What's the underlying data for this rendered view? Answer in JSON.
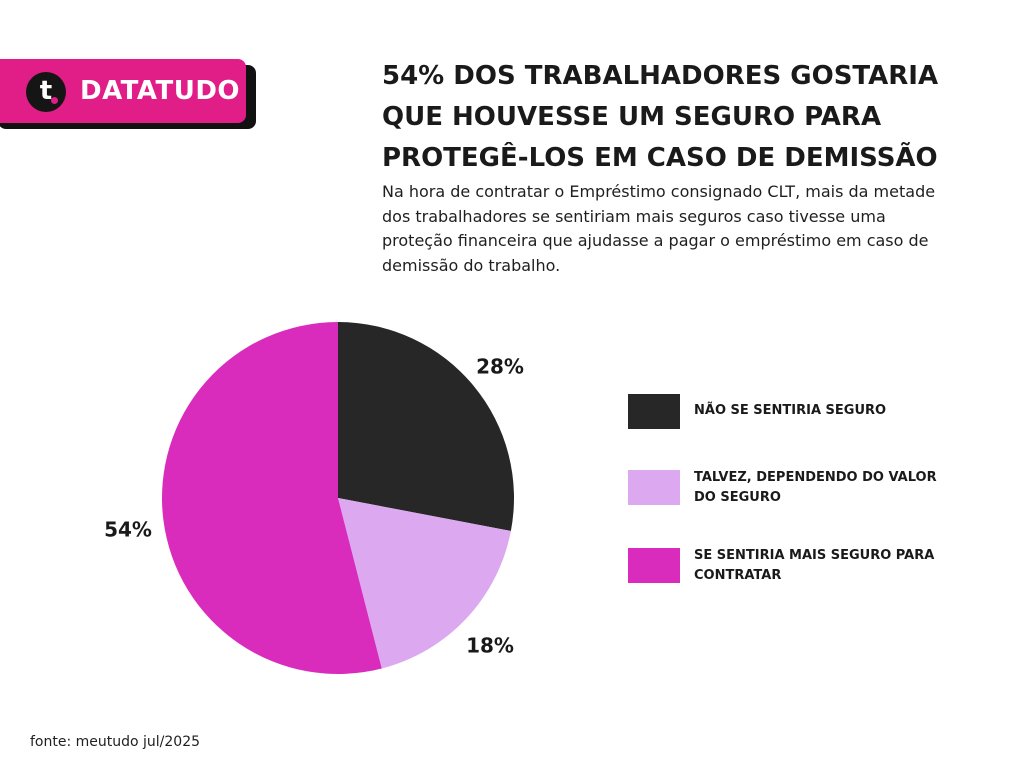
{
  "brand": {
    "logo_letter": "t",
    "name": "DATATUDO",
    "colors": {
      "accent": "#e11d88",
      "dark": "#151515"
    }
  },
  "headline": {
    "lines": [
      "54% DOS TRABALHADORES GOSTARIA",
      "QUE HOUVESSE UM SEGURO PARA",
      "PROTEGÊ-LOS EM CASO DE DEMISSÃO"
    ]
  },
  "subtitle": {
    "lines": [
      "Na hora de contratar o Empréstimo consignado CLT, mais da metade",
      "dos trabalhadores se sentiriam mais seguros caso tivesse uma",
      "proteção financeira que ajudasse a pagar o empréstimo em caso de",
      "demissão do trabalho."
    ]
  },
  "chart_data": {
    "type": "pie",
    "slices": [
      {
        "label_lines": [
          "NÃO SE SENTIRIA SEGURO"
        ],
        "value": 28,
        "value_label": "28%",
        "color": "#272727"
      },
      {
        "label_lines": [
          "TALVEZ, DEPENDENDO DO VALOR",
          "DO SEGURO"
        ],
        "value": 18,
        "value_label": "18%",
        "color": "#dca8f0"
      },
      {
        "label_lines": [
          "SE SENTIRIA MAIS SEGURO PARA",
          "CONTRATAR"
        ],
        "value": 54,
        "value_label": "54%",
        "color": "#d92cbd"
      }
    ],
    "start": "top",
    "direction": "clockwise",
    "legend_position": "right"
  },
  "source": "fonte: meutudo jul/2025"
}
